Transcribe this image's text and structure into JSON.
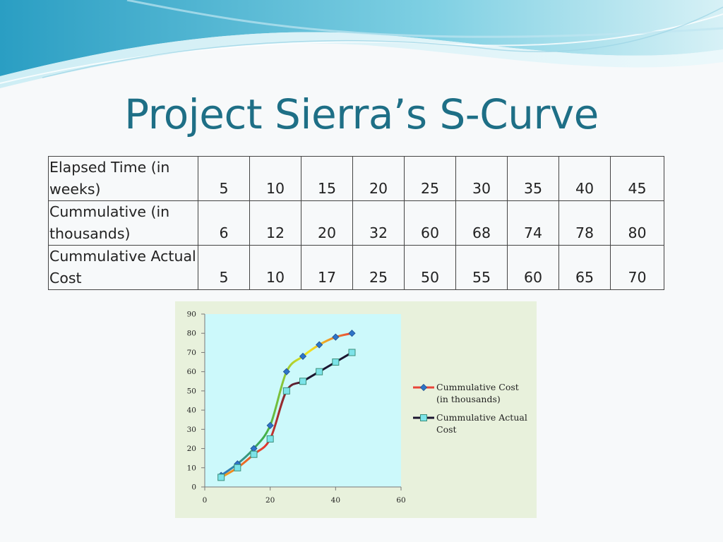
{
  "slide": {
    "title": "Project Sierra’s S-Curve"
  },
  "table": {
    "rows": [
      {
        "label_lines": [
          "Elapsed Time (in",
          "weeks)"
        ],
        "values": [
          "5",
          "10",
          "15",
          "20",
          "25",
          "30",
          "35",
          "40",
          "45"
        ]
      },
      {
        "label_lines": [
          "Cummulative (in",
          "thousands)"
        ],
        "values": [
          "6",
          "12",
          "20",
          "32",
          "60",
          "68",
          "74",
          "78",
          "80"
        ]
      },
      {
        "label_lines": [
          "Cummulative Actual",
          "Cost"
        ],
        "values": [
          "5",
          "10",
          "17",
          "25",
          "50",
          "55",
          "60",
          "65",
          "70"
        ]
      }
    ]
  },
  "chart_data": {
    "type": "line",
    "title": "",
    "xlabel": "",
    "ylabel": "",
    "x": [
      5,
      10,
      15,
      20,
      25,
      30,
      35,
      40,
      45
    ],
    "xlim": [
      0,
      60
    ],
    "ylim": [
      0,
      90
    ],
    "x_ticks": [
      0,
      20,
      40,
      60
    ],
    "y_ticks": [
      0,
      10,
      20,
      30,
      40,
      50,
      60,
      70,
      80,
      90
    ],
    "grid": false,
    "legend_position": "right",
    "plot_background": "#ccf9fb",
    "chart_background": "#e8f1dc",
    "series": [
      {
        "name_lines": [
          "Cummulative Cost",
          "(in thousands)"
        ],
        "values": [
          6,
          12,
          20,
          32,
          60,
          68,
          74,
          78,
          80
        ],
        "marker": "diamond",
        "marker_color": "#2e74c8",
        "line_gradient": [
          "#2e74c8",
          "#3fb04a",
          "#f2e31c",
          "#e8453a"
        ]
      },
      {
        "name_lines": [
          "Cummulative Actual",
          "Cost"
        ],
        "values": [
          5,
          10,
          17,
          25,
          50,
          55,
          60,
          65,
          70
        ],
        "marker": "square",
        "marker_color": "#7ce3e9",
        "line_gradient": [
          "#f2a51c",
          "#e6392f",
          "#1b1530",
          "#1b1530"
        ]
      }
    ]
  }
}
